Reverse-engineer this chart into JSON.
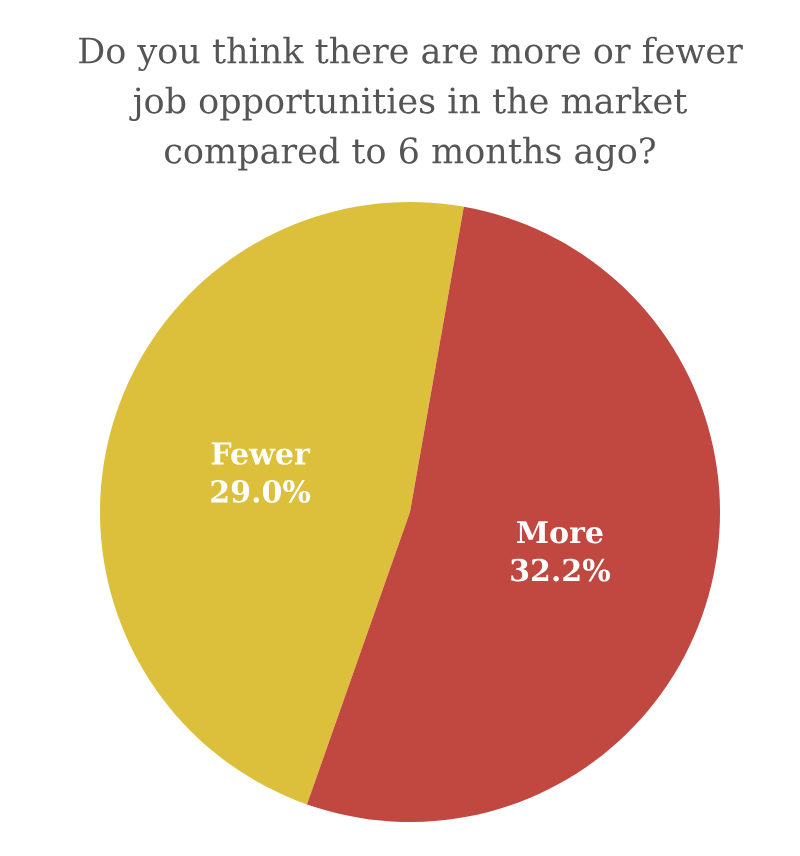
{
  "chart_data": {
    "type": "pie",
    "title": "Do you think there are more or fewer job opportunities in the market compared to 6 months ago?",
    "categories": [
      "Fewer",
      "More"
    ],
    "values": [
      29.0,
      32.2
    ],
    "value_labels": [
      "29.0%",
      "32.2%"
    ],
    "colors": [
      "#dcc03c",
      "#c04840"
    ]
  }
}
